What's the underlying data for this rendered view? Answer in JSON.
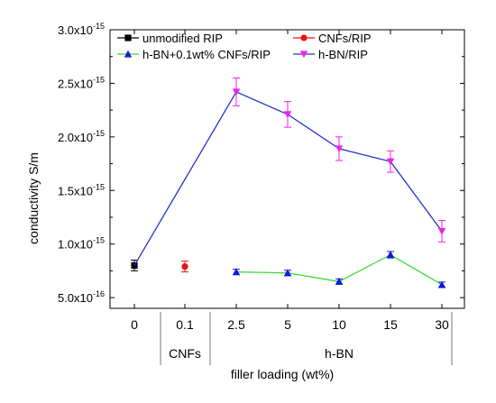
{
  "chart_data": {
    "type": "scatter",
    "xlabel": "filler loading (wt%)",
    "ylabel": "conductivity S/m",
    "categories": [
      "0",
      "0.1",
      "2.5",
      "5",
      "10",
      "15",
      "30"
    ],
    "groups": [
      {
        "label": "CNFs",
        "from": 1,
        "to": 1
      },
      {
        "label": "h-BN",
        "from": 2,
        "to": 6
      }
    ],
    "y_scale_exponent": -15,
    "ylim": [
      0.4,
      3.0
    ],
    "y_ticks": [
      {
        "mantissa": "5.0",
        "exp": "-16",
        "value": 0.5
      },
      {
        "mantissa": "1.0",
        "exp": "-15",
        "value": 1.0
      },
      {
        "mantissa": "1.5",
        "exp": "-15",
        "value": 1.5
      },
      {
        "mantissa": "2.0",
        "exp": "-15",
        "value": 2.0
      },
      {
        "mantissa": "2.5",
        "exp": "-15",
        "value": 2.5
      },
      {
        "mantissa": "3.0",
        "exp": "-15",
        "value": 3.0
      }
    ],
    "series": [
      {
        "name": "unmodified RIP",
        "color": "#000000",
        "marker": "square",
        "line": false,
        "x_index": [
          0
        ],
        "values": [
          0.8
        ],
        "errors": [
          0.05
        ]
      },
      {
        "name": "CNFs/RIP",
        "color": "#ee1111",
        "marker": "circle",
        "line": false,
        "x_index": [
          1
        ],
        "values": [
          0.79
        ],
        "errors": [
          0.05
        ]
      },
      {
        "name": "h-BN+0.1wt% CNFs/RIP",
        "color": "#1515dd",
        "line_color": "#33dd33",
        "marker": "triangle-up",
        "line": true,
        "x_index": [
          2,
          3,
          4,
          5,
          6
        ],
        "values": [
          0.74,
          0.73,
          0.65,
          0.9,
          0.62
        ],
        "errors": [
          0.025,
          0.025,
          0.025,
          0.03,
          0.025
        ]
      },
      {
        "name": "h-BN/RIP",
        "color": "#ee22ee",
        "line_color": "#2233cc",
        "marker": "triangle-down",
        "line": true,
        "x_index": [
          0,
          2,
          3,
          4,
          5,
          6
        ],
        "values": [
          0.8,
          2.42,
          2.21,
          1.89,
          1.77,
          1.12
        ],
        "errors": [
          0,
          0.13,
          0.12,
          0.11,
          0.1,
          0.1
        ]
      }
    ],
    "legend_position": "top",
    "grid": false
  }
}
